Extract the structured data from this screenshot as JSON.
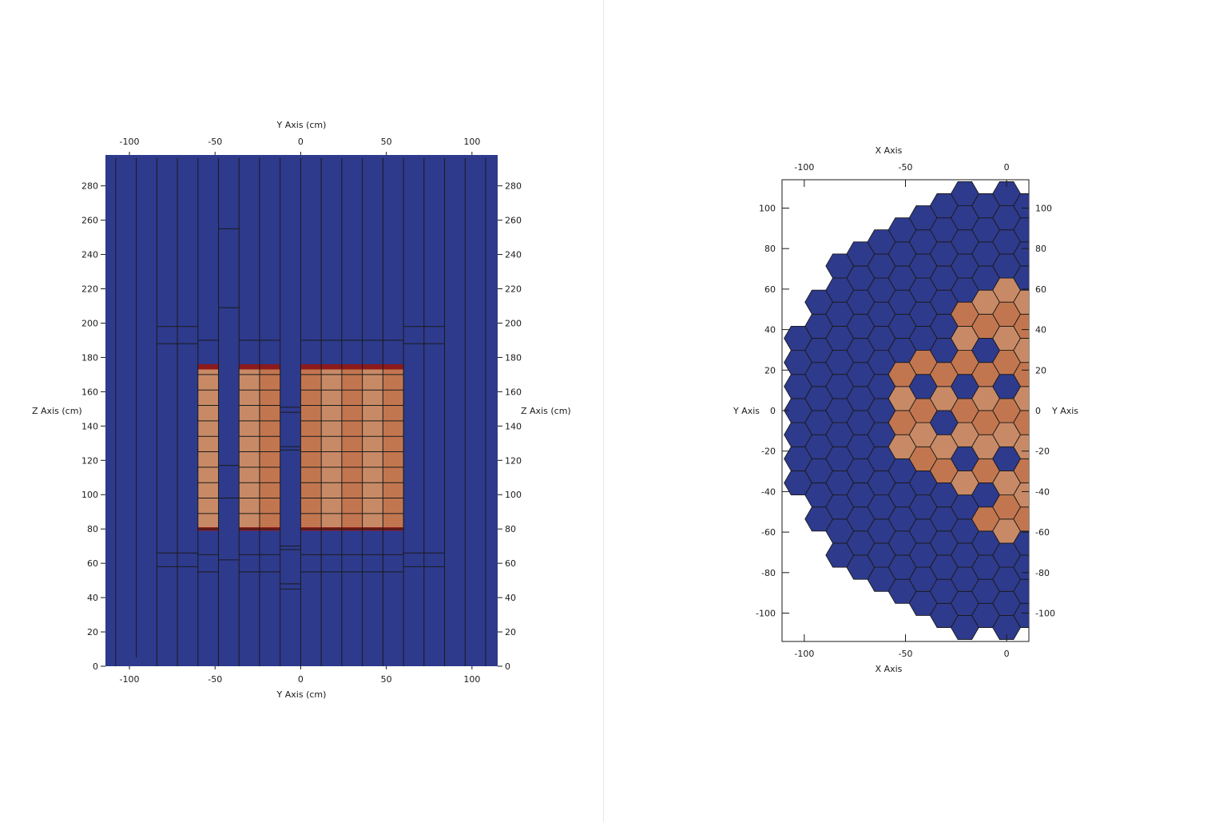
{
  "colors": {
    "moderator": "#2e3a8c",
    "fuel": "#c2764f",
    "fuel_light": "#c88a66",
    "end_band": "#8c1a1a",
    "line": "#1a1a1a",
    "background": "#ffffff"
  },
  "left_view": {
    "top_axis_title": "Y Axis (cm)",
    "bottom_axis_title": "Y Axis (cm)",
    "left_axis_title": "Z Axis (cm)",
    "right_axis_title": "Z Axis (cm)",
    "y_ticks": [
      "-100",
      "-50",
      "0",
      "50",
      "100"
    ],
    "y_tick_values": [
      -100,
      -50,
      0,
      50,
      100
    ],
    "z_ticks": [
      "0",
      "20",
      "40",
      "60",
      "80",
      "100",
      "120",
      "140",
      "160",
      "180",
      "200",
      "220",
      "240",
      "260",
      "280"
    ],
    "z_tick_values": [
      0,
      20,
      40,
      60,
      80,
      100,
      120,
      140,
      160,
      180,
      200,
      220,
      240,
      260,
      280
    ],
    "y_range": [
      -114,
      115
    ],
    "z_range": [
      0,
      298
    ],
    "fuel_region_left": {
      "y": [
        -60,
        -48
      ],
      "z": [
        80,
        174
      ]
    },
    "fuel_region_mid": {
      "y": [
        -36,
        -12
      ],
      "z": [
        80,
        174
      ]
    },
    "fuel_region_right": {
      "y": [
        0,
        60
      ],
      "z": [
        80,
        174
      ]
    },
    "control_rod_top_z": 255,
    "channel_boundaries_y": [
      -108,
      -96,
      -84,
      -72,
      -60,
      -48,
      -36,
      -24,
      -12,
      0,
      12,
      24,
      36,
      48,
      60,
      72,
      84,
      96,
      108
    ]
  },
  "right_view": {
    "top_axis_title": "X Axis",
    "bottom_axis_title": "X Axis",
    "left_axis_title": "Y Axis",
    "right_axis_title": "Y Axis",
    "x_ticks": [
      "-100",
      "-50",
      "0"
    ],
    "x_tick_values": [
      -100,
      -50,
      0
    ],
    "y_ticks": [
      "-100",
      "-80",
      "-60",
      "-40",
      "-20",
      "0",
      "20",
      "40",
      "60",
      "80",
      "100"
    ],
    "y_tick_values": [
      -100,
      -80,
      -60,
      -40,
      -20,
      0,
      20,
      40,
      60,
      80,
      100
    ],
    "x_range": [
      -111,
      11
    ],
    "y_range": [
      -114,
      114
    ],
    "hex_pitch": 11.9
  }
}
